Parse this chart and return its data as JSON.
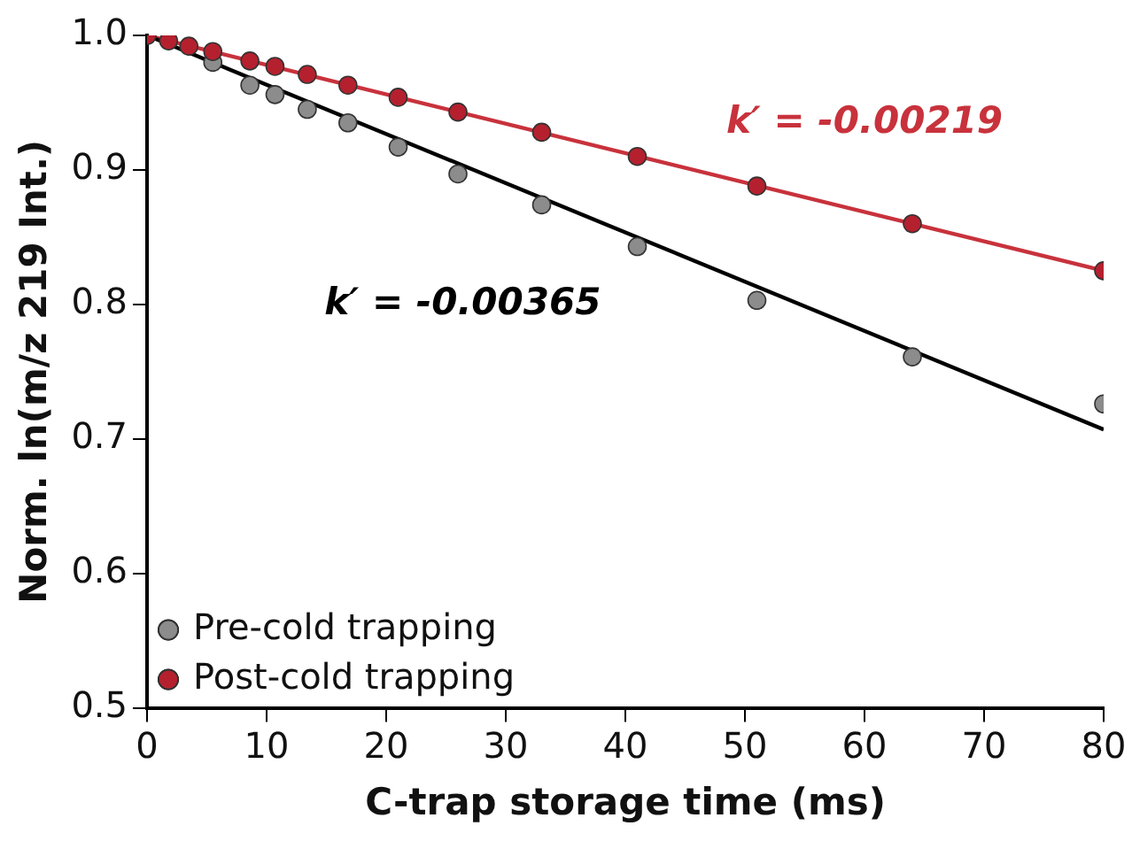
{
  "chart_data": {
    "type": "scatter",
    "xlabel": "C-trap storage time (ms)",
    "ylabel": "Norm. ln(m/z 219 Int.)",
    "xlim": [
      0,
      80
    ],
    "xticks": [
      0,
      10,
      20,
      30,
      40,
      50,
      60,
      70,
      80
    ],
    "ylim": [
      0.5,
      1.0
    ],
    "yticks": [
      {
        "value": 0.5,
        "label": "0.5"
      },
      {
        "value": 0.6,
        "label": "0.6"
      },
      {
        "value": 0.7,
        "label": "0.7"
      },
      {
        "value": 0.8,
        "label": "0.8"
      },
      {
        "value": 0.9,
        "label": "0.9"
      },
      {
        "value": 1.0,
        "label": "1.0"
      }
    ],
    "grid": false,
    "legend": "bottom left",
    "marker": "circle",
    "series": [
      {
        "name": "Pre-cold trapping",
        "color": "#8c8c8c",
        "x": [
          5.5,
          8.6,
          10.7,
          13.4,
          16.8,
          21,
          26,
          33,
          41,
          51,
          64,
          80
        ],
        "values": [
          0.98,
          0.963,
          0.956,
          0.945,
          0.935,
          0.917,
          0.897,
          0.874,
          0.843,
          0.803,
          0.761,
          0.726
        ]
      },
      {
        "name": "Post-cold trapping",
        "color": "#b5202e",
        "x": [
          0,
          1.8,
          3.5,
          5.5,
          8.6,
          10.7,
          13.4,
          16.8,
          21,
          26,
          33,
          41,
          51,
          64,
          80
        ],
        "values": [
          1.0,
          0.996,
          0.992,
          0.988,
          0.981,
          0.977,
          0.971,
          0.963,
          0.954,
          0.943,
          0.928,
          0.91,
          0.888,
          0.86,
          0.825
        ]
      },
      {
        "type": "line",
        "marker": "none",
        "color": "#000000",
        "x": [
          0,
          80
        ],
        "values": [
          1.0,
          0.707
        ]
      },
      {
        "type": "line",
        "marker": "none",
        "color": "#c8323c",
        "x": [
          0,
          80
        ],
        "values": [
          1.0,
          0.825
        ]
      }
    ],
    "annotations": [
      "k′ = -0.00365",
      "k′ = -0.00219"
    ]
  }
}
